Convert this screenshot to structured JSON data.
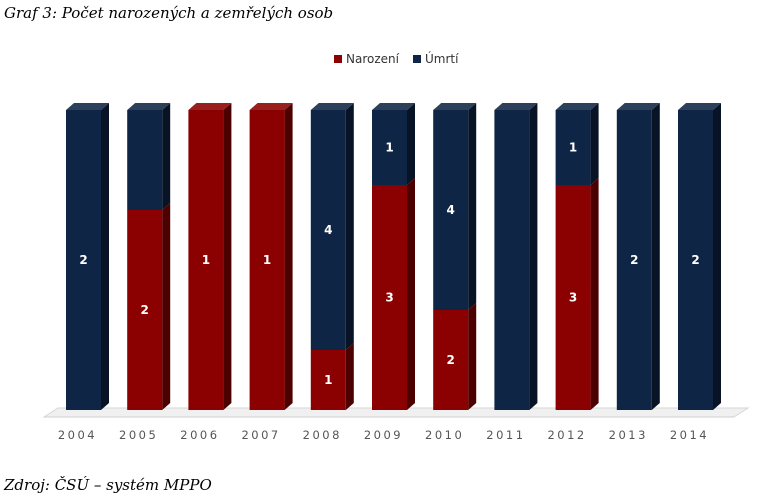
{
  "title": "Graf 3: Počet narozených a zemřelých osob",
  "source": "Zdroj: ČSÚ – systém MPPO",
  "colors": {
    "narozeni": "#8b0000",
    "umrti": "#0f2545"
  },
  "chart_data": {
    "type": "bar",
    "stacked": "100%",
    "categories": [
      "2004",
      "2005",
      "2006",
      "2007",
      "2008",
      "2009",
      "2010",
      "2011",
      "2012",
      "2013",
      "2014"
    ],
    "series": [
      {
        "name": "Narození",
        "values": [
          0,
          2,
          1,
          1,
          1,
          3,
          2,
          0,
          3,
          0,
          0
        ]
      },
      {
        "name": "Úmrtí",
        "values": [
          2,
          1,
          0,
          0,
          4,
          1,
          4,
          1,
          1,
          2,
          2
        ]
      }
    ],
    "data_labels": {
      "Narození": [
        "",
        "2",
        "1",
        "1",
        "1",
        "3",
        "2",
        "",
        "3",
        "",
        ""
      ],
      "Úmrtí": [
        "2",
        "",
        "",
        "",
        "4",
        "1",
        "4",
        "",
        "1",
        "2",
        "2"
      ]
    },
    "legend_position": "top-center",
    "grid": false
  }
}
